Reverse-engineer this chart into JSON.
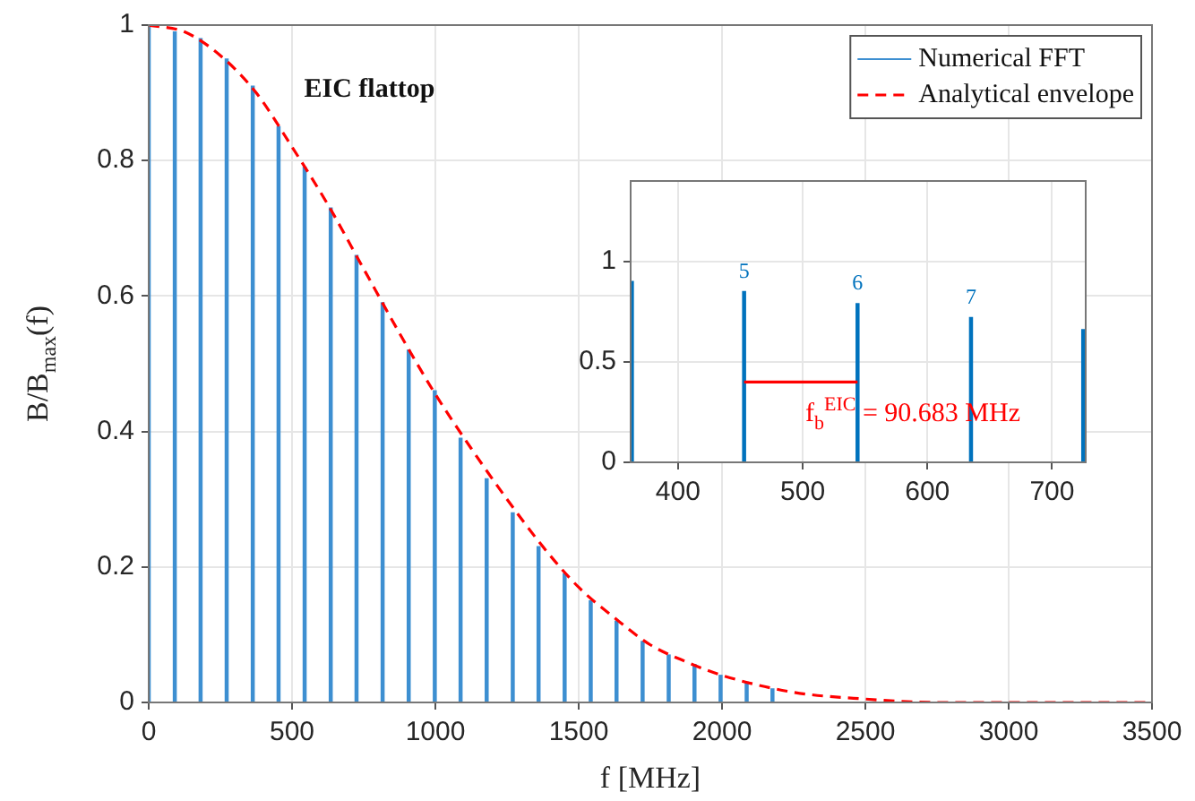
{
  "chart_data": [
    {
      "type": "bar",
      "title": "EIC flattop",
      "xlabel": "f [MHz]",
      "ylabel": "B/B$_{max}$(f)",
      "xlim": [
        0,
        3500
      ],
      "xticks": [
        0,
        500,
        1000,
        1500,
        2000,
        2500,
        3000,
        3500
      ],
      "ylim": [
        0,
        1
      ],
      "yticks": [
        0,
        0.2,
        0.4,
        0.6,
        0.8,
        1
      ],
      "grid": true,
      "legend": "top right",
      "series": [
        {
          "name": "Numerical FFT",
          "color": "#3d8fd1",
          "x": [
            0,
            91,
            181,
            272,
            363,
            453,
            544,
            635,
            725,
            816,
            907,
            998,
            1088,
            1179,
            1270,
            1360,
            1451,
            1542,
            1632,
            1723,
            1814,
            1904,
            1995,
            2086,
            2176
          ],
          "values": [
            1.0,
            0.99,
            0.98,
            0.95,
            0.91,
            0.85,
            0.79,
            0.73,
            0.66,
            0.59,
            0.52,
            0.46,
            0.39,
            0.33,
            0.28,
            0.23,
            0.19,
            0.15,
            0.12,
            0.09,
            0.07,
            0.056,
            0.04,
            0.03,
            0.02
          ]
        },
        {
          "name": "Analytical envelope",
          "type": "line",
          "line_style": "dashed",
          "color": "#ff0000",
          "x": [
            0,
            125,
            250,
            375,
            500,
            625,
            750,
            875,
            1000,
            1125,
            1250,
            1375,
            1500,
            1625,
            1750,
            1875,
            2000,
            2250,
            2500,
            2750,
            3000,
            3500
          ],
          "values": [
            1.0,
            0.99,
            0.955,
            0.9,
            0.82,
            0.735,
            0.64,
            0.545,
            0.455,
            0.375,
            0.3,
            0.23,
            0.17,
            0.125,
            0.085,
            0.06,
            0.04,
            0.015,
            0.005,
            0,
            0,
            0
          ]
        }
      ]
    },
    {
      "type": "bar",
      "xlim": [
        362,
        727
      ],
      "xticks": [
        400,
        500,
        600,
        700
      ],
      "ylim": [
        0,
        1.4
      ],
      "yticks": [
        0,
        0.5,
        1
      ],
      "grid": true,
      "annotations": [
        "f$_{b}$$^{EIC}$ = 90.683 MHz",
        {
          "text": "5",
          "x": 453,
          "y": 0.85
        },
        {
          "text": "6",
          "x": 544,
          "y": 0.79
        },
        {
          "text": "7",
          "x": 635,
          "y": 0.72
        }
      ],
      "series": [
        {
          "color": "#0072bd",
          "x": [
            363,
            453,
            544,
            635,
            725
          ],
          "values": [
            0.9,
            0.85,
            0.79,
            0.72,
            0.66
          ]
        },
        {
          "type": "line",
          "color": "#ff0000",
          "x": [
            453,
            544
          ],
          "values": [
            0.4,
            0.4
          ]
        }
      ]
    }
  ]
}
